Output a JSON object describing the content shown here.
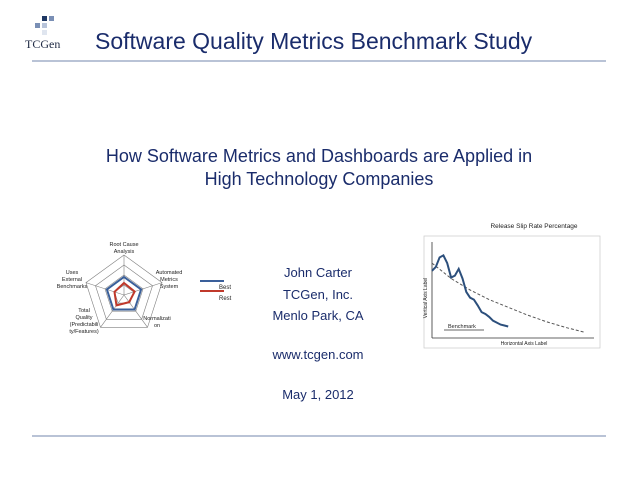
{
  "header": {
    "logo_text": "TCGen",
    "title": "Software Quality Metrics Benchmark Study"
  },
  "subtitle": {
    "line1": "How Software Metrics and Dashboards are Applied in",
    "line2": "High Technology Companies"
  },
  "presenter": {
    "name": "John Carter",
    "company": "TCGen, Inc.",
    "location": "Menlo Park, CA",
    "website": "www.tcgen.com",
    "date": "May 1, 2012"
  },
  "radar_chart": {
    "axes": [
      [
        "Root Cause",
        "Analysis"
      ],
      [
        "Automated",
        "Metrics",
        "System"
      ],
      [
        "Normalizati",
        "on"
      ],
      [
        "Total",
        "Quality",
        "(Predictabili",
        "ty/Features)"
      ],
      [
        "Uses",
        "External",
        "Benchmarks"
      ]
    ],
    "legend": [
      "Best",
      "Rest"
    ],
    "colors": {
      "best": "#3a5f9a",
      "rest": "#c0392b",
      "grid": "#7f7f7f"
    }
  },
  "chart_data": {
    "type": "line",
    "title": "Release Slip Rate Percentage",
    "xlabel": "Horizontal Axis Label",
    "ylabel": "Vertical Axis Label",
    "annotation": "Benchmark",
    "series": [
      {
        "x": [
          0,
          2,
          4,
          6,
          8,
          10,
          12,
          14,
          16,
          18,
          20,
          22,
          24,
          26,
          28,
          30,
          32,
          34,
          36,
          38,
          40
        ],
        "values": [
          0.7,
          0.74,
          0.84,
          0.86,
          0.78,
          0.63,
          0.65,
          0.72,
          0.62,
          0.48,
          0.42,
          0.4,
          0.34,
          0.27,
          0.25,
          0.22,
          0.18,
          0.16,
          0.14,
          0.13,
          0.12
        ],
        "style": "solid",
        "color": "#2c4f7c"
      },
      {
        "x": [
          0,
          10,
          20,
          30,
          40,
          50,
          60,
          70,
          80
        ],
        "values": [
          0.78,
          0.62,
          0.5,
          0.4,
          0.32,
          0.24,
          0.17,
          0.11,
          0.06
        ],
        "style": "dashed",
        "color": "#555555"
      }
    ],
    "xlim": [
      0,
      85
    ],
    "ylim": [
      0,
      1
    ]
  }
}
